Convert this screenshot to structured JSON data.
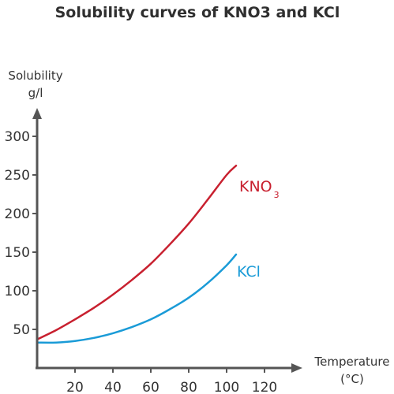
{
  "chart_data": {
    "type": "line",
    "title": "Solubility curves of KNO3 and KCl",
    "ylabel_line1": "Solubility",
    "ylabel_line2": "g/l",
    "xlabel_line1": "Temperature",
    "xlabel_line2": "(°C)",
    "xlim": [
      0,
      135
    ],
    "ylim": [
      0,
      320
    ],
    "x_ticks": [
      20,
      40,
      60,
      80,
      100,
      120
    ],
    "y_ticks": [
      50,
      100,
      150,
      200,
      250,
      300
    ],
    "grid": false,
    "series": [
      {
        "name": "KNO3",
        "label_main": "KNO",
        "label_sub": "3",
        "color": "#c8202f",
        "x": [
          0,
          10,
          20,
          30,
          40,
          50,
          60,
          70,
          80,
          90,
          100,
          105
        ],
        "y": [
          37,
          49,
          63,
          78,
          95,
          114,
          135,
          160,
          187,
          218,
          250,
          262
        ]
      },
      {
        "name": "KCl",
        "label_main": "KCl",
        "label_sub": "",
        "color": "#1a9bd7",
        "x": [
          0,
          10,
          20,
          30,
          40,
          50,
          60,
          70,
          80,
          90,
          100,
          105
        ],
        "y": [
          33,
          33,
          35,
          39,
          45,
          53,
          63,
          76,
          91,
          110,
          133,
          147
        ]
      }
    ]
  }
}
